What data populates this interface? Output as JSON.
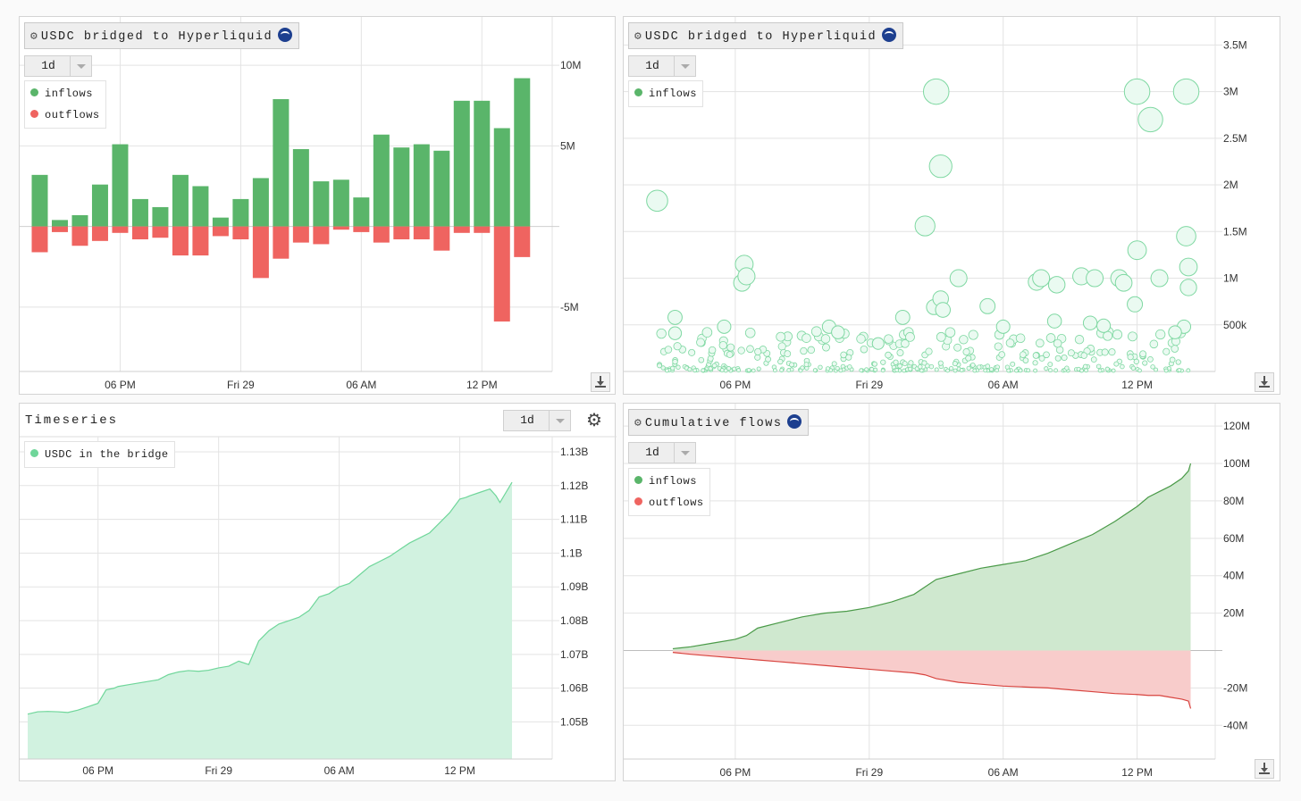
{
  "colors": {
    "inflow": "#5ab56a",
    "outflow": "#ef6460",
    "teal": "#6fd69a",
    "teal_fill": "#d1f2e0",
    "cum_in_line": "#4a9a48",
    "cum_in_fill": "#cfe8cf",
    "cum_out_line": "#d8443f",
    "cum_out_fill": "#f8cccb",
    "scatter_edge": "#7fd8a2",
    "scatter_fill": "#eafaf1"
  },
  "icons": {
    "gear": "gear-icon",
    "logo": "hyperliquid-logo-icon",
    "download": "download-icon",
    "dropdown": "chevron-down-icon"
  },
  "panels": {
    "bars": {
      "title": "USDC bridged to Hyperliquid",
      "period": "1d",
      "legend": [
        "inflows",
        "outflows"
      ]
    },
    "scatter": {
      "title": "USDC bridged to Hyperliquid",
      "period": "1d",
      "legend": [
        "inflows"
      ]
    },
    "timeseries": {
      "title": "Timeseries",
      "period": "1d",
      "legend": [
        "USDC in the bridge"
      ]
    },
    "cumulative": {
      "title": "Cumulative flows",
      "period": "1d",
      "legend": [
        "inflows",
        "outflows"
      ]
    }
  },
  "chart_data": [
    {
      "type": "bar",
      "title": "USDC bridged to Hyperliquid",
      "x_ticks": [
        "06 PM",
        "Fri 29",
        "06 AM",
        "12 PM"
      ],
      "x_tick_hours": [
        18,
        24,
        30,
        36
      ],
      "x_range_hours": [
        13,
        39.5
      ],
      "y_ticks": [
        {
          "v": 10000000,
          "label": "10M"
        },
        {
          "v": 5000000,
          "label": "5M"
        },
        {
          "v": -5000000,
          "label": "-5M"
        }
      ],
      "ylim": [
        -9000000,
        13000000
      ],
      "hours": [
        14,
        15,
        16,
        17,
        18,
        19,
        20,
        21,
        22,
        23,
        24,
        25,
        26,
        27,
        28,
        29,
        30,
        31,
        32,
        33,
        34,
        35,
        36,
        37,
        38,
        39
      ],
      "series": [
        {
          "name": "inflows",
          "values": [
            3200000,
            400000,
            700000,
            2600000,
            5100000,
            1700000,
            1200000,
            3200000,
            2500000,
            550000,
            1700000,
            3000000,
            7900000,
            4800000,
            2800000,
            2900000,
            1800000,
            5700000,
            4900000,
            5100000,
            4700000,
            7800000,
            7800000,
            6100000,
            9200000,
            0
          ]
        },
        {
          "name": "outflows",
          "values": [
            -1600000,
            -350000,
            -1200000,
            -900000,
            -400000,
            -800000,
            -700000,
            -1800000,
            -1800000,
            -600000,
            -800000,
            -3200000,
            -2000000,
            -1000000,
            -1100000,
            -200000,
            -350000,
            -1000000,
            -800000,
            -800000,
            -1500000,
            -400000,
            -400000,
            -5900000,
            -1900000,
            0
          ]
        }
      ]
    },
    {
      "type": "scatter",
      "title": "USDC bridged to Hyperliquid",
      "x_ticks": [
        "06 PM",
        "Fri 29",
        "06 AM",
        "12 PM"
      ],
      "x_tick_hours": [
        18,
        24,
        30,
        36
      ],
      "x_range_hours": [
        13,
        39.5
      ],
      "y_ticks": [
        {
          "v": 3500000,
          "label": "3.5M"
        },
        {
          "v": 3000000,
          "label": "3M"
        },
        {
          "v": 2500000,
          "label": "2.5M"
        },
        {
          "v": 2000000,
          "label": "2M"
        },
        {
          "v": 1500000,
          "label": "1.5M"
        },
        {
          "v": 1000000,
          "label": "1M"
        },
        {
          "v": 500000,
          "label": "500k"
        }
      ],
      "ylim": [
        0,
        3800000
      ],
      "series": [
        {
          "name": "inflows",
          "points": [
            [
              14.5,
              1830000
            ],
            [
              15.3,
              580000
            ],
            [
              15.3,
              410000
            ],
            [
              17.5,
              480000
            ],
            [
              18.4,
              1150000
            ],
            [
              18.3,
              950000
            ],
            [
              18.5,
              1020000
            ],
            [
              22.2,
              480000
            ],
            [
              22.6,
              420000
            ],
            [
              24.4,
              300000
            ],
            [
              25.5,
              580000
            ],
            [
              26.5,
              1560000
            ],
            [
              27.0,
              3000000
            ],
            [
              27.2,
              2200000
            ],
            [
              26.9,
              690000
            ],
            [
              27.2,
              780000
            ],
            [
              27.3,
              660000
            ],
            [
              28.0,
              1000000
            ],
            [
              29.3,
              700000
            ],
            [
              30.0,
              480000
            ],
            [
              31.5,
              960000
            ],
            [
              31.7,
              1000000
            ],
            [
              32.4,
              930000
            ],
            [
              33.5,
              1020000
            ],
            [
              34.1,
              1000000
            ],
            [
              35.2,
              1000000
            ],
            [
              35.4,
              950000
            ],
            [
              35.9,
              720000
            ],
            [
              36.0,
              1300000
            ],
            [
              36.0,
              3000000
            ],
            [
              36.6,
              2700000
            ],
            [
              37.0,
              1000000
            ],
            [
              38.2,
              3000000
            ],
            [
              38.2,
              1450000
            ],
            [
              38.3,
              1120000
            ],
            [
              38.3,
              900000
            ],
            [
              38.1,
              480000
            ],
            [
              37.7,
              420000
            ],
            [
              33.9,
              520000
            ],
            [
              34.5,
              490000
            ],
            [
              32.3,
              540000
            ]
          ]
        }
      ],
      "small_points_note": "dense small inflows near zero"
    },
    {
      "type": "area",
      "title": "Timeseries",
      "series_name": "USDC in the bridge",
      "x_ticks": [
        "06 PM",
        "Fri 29",
        "06 AM",
        "12 PM"
      ],
      "x_tick_hours": [
        18,
        24,
        30,
        36
      ],
      "x_range_hours": [
        14.1,
        40.6
      ],
      "y_ticks": [
        {
          "v": 1.13,
          "label": "1.13B"
        },
        {
          "v": 1.12,
          "label": "1.12B"
        },
        {
          "v": 1.11,
          "label": "1.11B"
        },
        {
          "v": 1.1,
          "label": "1.1B"
        },
        {
          "v": 1.09,
          "label": "1.09B"
        },
        {
          "v": 1.08,
          "label": "1.08B"
        },
        {
          "v": 1.07,
          "label": "1.07B"
        },
        {
          "v": 1.06,
          "label": "1.06B"
        },
        {
          "v": 1.05,
          "label": "1.05B"
        }
      ],
      "ylim": [
        1.039,
        1.1345
      ],
      "x": [
        14.5,
        15,
        15.5,
        16,
        16.5,
        17,
        17.5,
        18,
        18.4,
        18.8,
        19,
        19.5,
        20,
        20.5,
        21,
        21.5,
        22,
        22.5,
        23,
        23.5,
        24,
        24.5,
        25,
        25.5,
        26,
        26.5,
        27,
        27.5,
        28,
        28.5,
        29,
        29.5,
        30,
        30.5,
        31,
        31.5,
        32,
        32.5,
        33,
        33.5,
        34,
        34.5,
        35,
        35.5,
        36,
        36.3,
        36.5,
        37,
        37.5,
        37.8,
        38,
        38.3,
        38.6
      ],
      "values": [
        1.0523,
        1.053,
        1.0531,
        1.053,
        1.0528,
        1.0535,
        1.0545,
        1.0555,
        1.0595,
        1.06,
        1.0605,
        1.061,
        1.0615,
        1.062,
        1.0625,
        1.064,
        1.0648,
        1.0652,
        1.065,
        1.0653,
        1.066,
        1.0665,
        1.068,
        1.067,
        1.074,
        1.077,
        1.079,
        1.08,
        1.081,
        1.083,
        1.087,
        1.088,
        1.09,
        1.091,
        1.0935,
        1.096,
        1.0975,
        1.099,
        1.101,
        1.103,
        1.1045,
        1.106,
        1.109,
        1.112,
        1.116,
        1.1165,
        1.117,
        1.118,
        1.119,
        1.117,
        1.115,
        1.118,
        1.121
      ]
    },
    {
      "type": "area",
      "title": "Cumulative flows",
      "x_ticks": [
        "06 PM",
        "Fri 29",
        "06 AM",
        "12 PM"
      ],
      "x_tick_hours": [
        18,
        24,
        30,
        36
      ],
      "x_range_hours": [
        13,
        39.5
      ],
      "y_ticks": [
        {
          "v": 120,
          "label": "120M"
        },
        {
          "v": 100,
          "label": "100M"
        },
        {
          "v": 80,
          "label": "80M"
        },
        {
          "v": 60,
          "label": "60M"
        },
        {
          "v": 40,
          "label": "40M"
        },
        {
          "v": 20,
          "label": "20M"
        },
        {
          "v": -20,
          "label": "-20M"
        },
        {
          "v": -40,
          "label": "-40M"
        }
      ],
      "ylim": [
        -58,
        132
      ],
      "x": [
        15.2,
        16,
        17,
        18,
        18.5,
        19,
        20,
        21,
        22,
        23,
        24,
        25,
        26,
        26.5,
        27,
        28,
        29,
        30,
        31,
        32,
        33,
        34,
        35,
        36,
        36.5,
        37,
        37.5,
        38,
        38.3,
        38.4
      ],
      "series": [
        {
          "name": "inflows",
          "values": [
            1,
            2,
            4,
            6,
            8,
            12,
            15,
            18,
            20,
            21,
            23,
            26,
            30,
            34,
            38,
            41,
            44,
            46,
            48,
            52,
            57,
            62,
            69,
            77,
            82,
            85,
            88,
            92,
            96,
            100
          ]
        },
        {
          "name": "outflows",
          "values": [
            -1,
            -2,
            -3,
            -4,
            -4.5,
            -5,
            -6,
            -7,
            -8,
            -9,
            -10,
            -11,
            -12,
            -13,
            -15,
            -17,
            -18,
            -19,
            -19.5,
            -20,
            -21,
            -22,
            -23,
            -23.5,
            -24,
            -24,
            -25,
            -26,
            -27,
            -31
          ]
        }
      ]
    }
  ]
}
